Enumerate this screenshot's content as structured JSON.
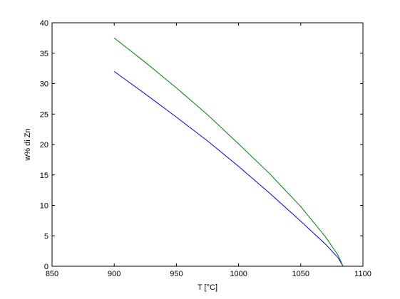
{
  "chart_data": {
    "type": "line",
    "xlabel": "T [°C]",
    "ylabel": "w% di Zn",
    "x": [
      900,
      925,
      950,
      975,
      1000,
      1025,
      1050,
      1070,
      1080,
      1084
    ],
    "series": [
      {
        "color": "#0000ff",
        "values": [
          32.0,
          28.3,
          24.5,
          20.6,
          16.4,
          12.0,
          7.4,
          3.6,
          1.4,
          0
        ]
      },
      {
        "color": "#008000",
        "values": [
          37.5,
          33.5,
          29.3,
          24.9,
          20.1,
          15.2,
          9.8,
          4.8,
          1.8,
          0
        ]
      }
    ],
    "xlim": [
      850,
      1100
    ],
    "xticks": [
      850,
      900,
      950,
      1000,
      1050,
      1100
    ],
    "ylim": [
      0,
      40
    ],
    "yticks": [
      0,
      5,
      10,
      15,
      20,
      25,
      30,
      35,
      40
    ]
  }
}
